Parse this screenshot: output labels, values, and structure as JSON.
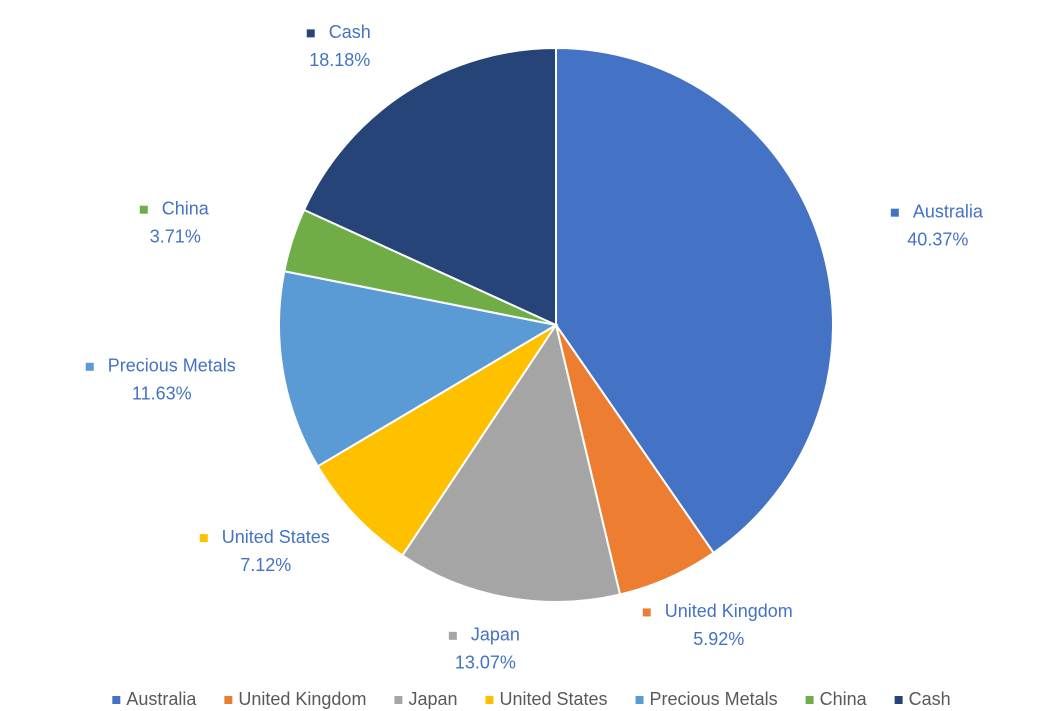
{
  "chart_data": {
    "type": "pie",
    "categories": [
      "Australia",
      "United Kingdom",
      "Japan",
      "United States",
      "Precious Metals",
      "China",
      "Cash"
    ],
    "values": [
      40.37,
      5.92,
      13.07,
      7.12,
      11.63,
      3.71,
      18.18
    ],
    "value_labels": [
      "40.37%",
      "5.92%",
      "13.07%",
      "7.12%",
      "11.63%",
      "3.71%",
      "18.18%"
    ],
    "colors": [
      "#4472c4",
      "#ed7d31",
      "#a5a5a5",
      "#ffc000",
      "#5b9bd5",
      "#70ad47",
      "#264478"
    ],
    "legend": "bottom"
  }
}
